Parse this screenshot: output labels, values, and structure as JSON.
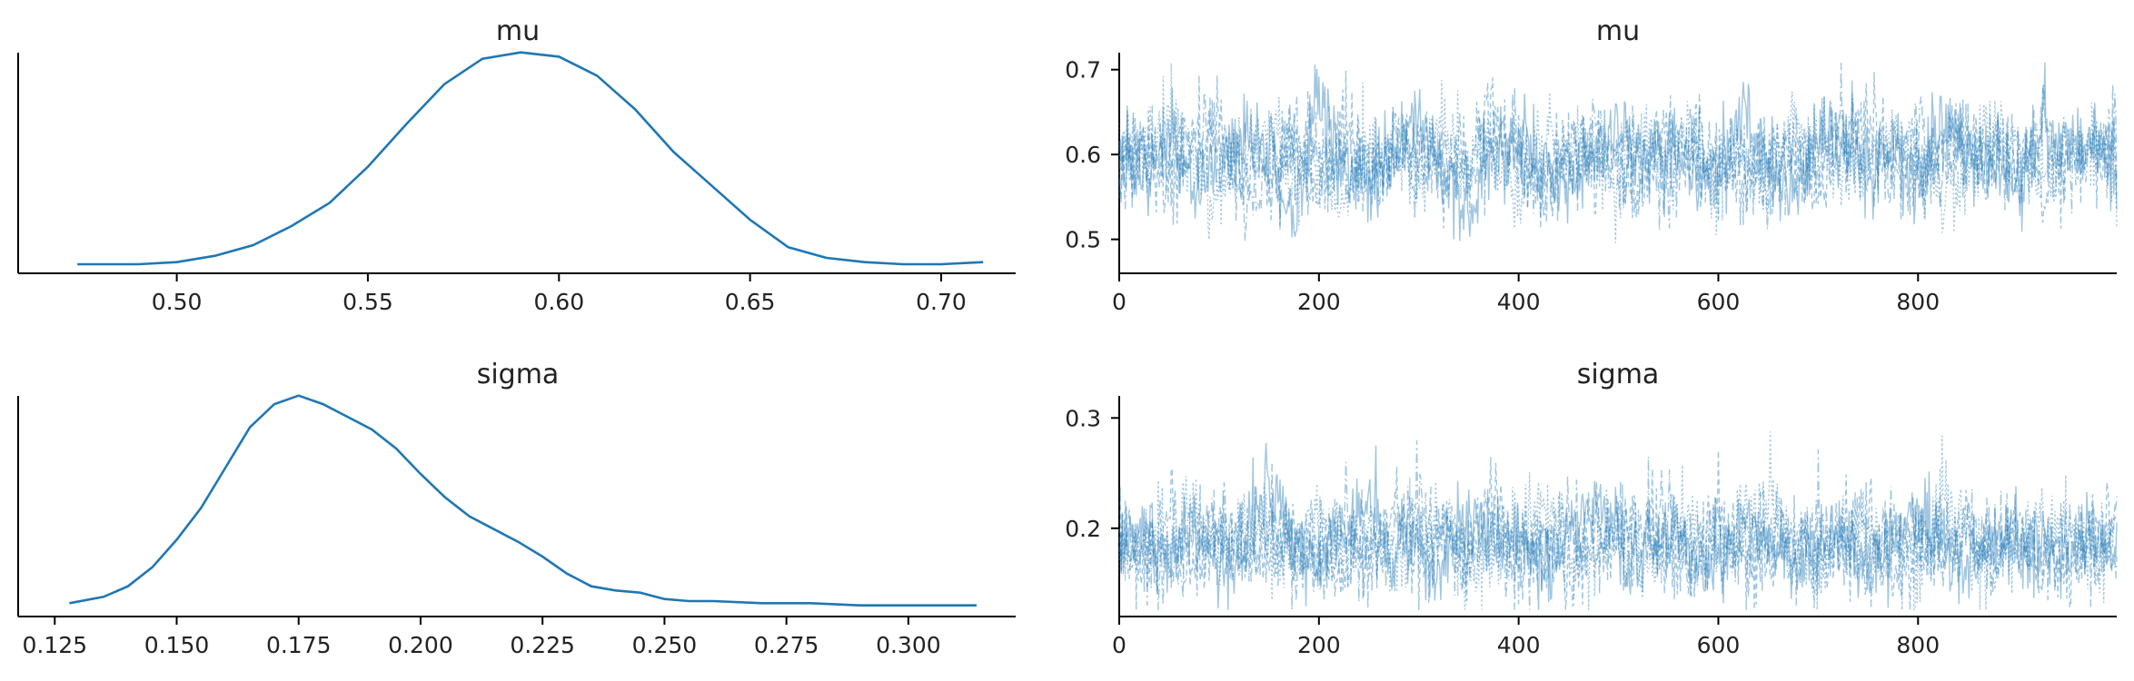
{
  "figure": {
    "colors": {
      "series": "#1f77b4",
      "axis": "#000000",
      "background": "#ffffff"
    }
  },
  "chart_data": [
    {
      "type": "line",
      "kind": "kde",
      "title": "mu",
      "xlabel": "",
      "ylabel": "",
      "xlim": [
        0.4585,
        0.7195
      ],
      "ylim": [
        0,
        1
      ],
      "xticks": [
        0.5,
        0.55,
        0.6,
        0.65,
        0.7
      ],
      "xtick_labels": [
        "0.50",
        "0.55",
        "0.60",
        "0.65",
        "0.70"
      ],
      "yticks_visible": false,
      "series": [
        {
          "x": [
            0.474,
            0.49,
            0.5,
            0.51,
            0.52,
            0.53,
            0.54,
            0.55,
            0.56,
            0.57,
            0.58,
            0.59,
            0.6,
            0.61,
            0.62,
            0.63,
            0.64,
            0.65,
            0.66,
            0.67,
            0.68,
            0.69,
            0.7,
            0.711
          ],
          "y": [
            0.0,
            0.0,
            0.01,
            0.04,
            0.09,
            0.18,
            0.29,
            0.46,
            0.66,
            0.85,
            0.97,
            1.0,
            0.98,
            0.89,
            0.73,
            0.53,
            0.37,
            0.21,
            0.08,
            0.03,
            0.01,
            0.0,
            0.0,
            0.01
          ]
        }
      ]
    },
    {
      "type": "line",
      "kind": "trace",
      "title": "mu",
      "xlabel": "",
      "ylabel": "",
      "xlim": [
        0,
        999
      ],
      "ylim": [
        0.46,
        0.72
      ],
      "xticks": [
        0,
        200,
        400,
        600,
        800
      ],
      "xtick_labels": [
        "0",
        "200",
        "400",
        "600",
        "800"
      ],
      "yticks": [
        0.5,
        0.6,
        0.7
      ],
      "ytick_labels": [
        "0.5",
        "0.6",
        "0.7"
      ],
      "n_draws": 1000,
      "n_chains": 4,
      "series": [
        {
          "name": "",
          "values": [
            0.6,
            0.57,
            0.62,
            0.55,
            0.58,
            0.63,
            0.6,
            0.52,
            0.66,
            0.59,
            0.57,
            0.61,
            0.64,
            0.58,
            0.54,
            0.6,
            0.62,
            0.59,
            0.56,
            0.6,
            0.63,
            0.58,
            0.61,
            0.57,
            0.6,
            0.65,
            0.59,
            0.55,
            0.62,
            0.6,
            0.58,
            0.61,
            0.57,
            0.63,
            0.6,
            0.59,
            0.55,
            0.62,
            0.6,
            0.61,
            0.58
          ]
        },
        {
          "name": "",
          "values": [
            0.58,
            0.62,
            0.56,
            0.6,
            0.64,
            0.57,
            0.59,
            0.61,
            0.55,
            0.63,
            0.6,
            0.58,
            0.62,
            0.57,
            0.6,
            0.66,
            0.59,
            0.56,
            0.61,
            0.58,
            0.6,
            0.55,
            0.63,
            0.6,
            0.58,
            0.57,
            0.62,
            0.6,
            0.56,
            0.61,
            0.64,
            0.59,
            0.57,
            0.6,
            0.62,
            0.58,
            0.61,
            0.56,
            0.6,
            0.59,
            0.62
          ]
        },
        {
          "name": "",
          "values": [
            0.61,
            0.59,
            0.65,
            0.58,
            0.56,
            0.6,
            0.62,
            0.57,
            0.59,
            0.54,
            0.62,
            0.6,
            0.57,
            0.63,
            0.59,
            0.61,
            0.55,
            0.62,
            0.6,
            0.58,
            0.57,
            0.64,
            0.59,
            0.61,
            0.56,
            0.6,
            0.58,
            0.63,
            0.61,
            0.57,
            0.59,
            0.62,
            0.6,
            0.55,
            0.58,
            0.63,
            0.6,
            0.57,
            0.61,
            0.6,
            0.58
          ]
        },
        {
          "name": "",
          "values": [
            0.57,
            0.6,
            0.59,
            0.63,
            0.61,
            0.55,
            0.57,
            0.62,
            0.6,
            0.58,
            0.56,
            0.63,
            0.59,
            0.61,
            0.57,
            0.6,
            0.62,
            0.55,
            0.59,
            0.63,
            0.58,
            0.6,
            0.57,
            0.62,
            0.59,
            0.61,
            0.56,
            0.59,
            0.6,
            0.64,
            0.57,
            0.6,
            0.62,
            0.58,
            0.6,
            0.61,
            0.57,
            0.63,
            0.58,
            0.61,
            0.6
          ]
        }
      ]
    },
    {
      "type": "line",
      "kind": "kde",
      "title": "sigma",
      "xlabel": "",
      "ylabel": "",
      "xlim": [
        0.1175,
        0.322
      ],
      "ylim": [
        0,
        1
      ],
      "xticks": [
        0.125,
        0.15,
        0.175,
        0.2,
        0.225,
        0.25,
        0.275,
        0.3
      ],
      "xtick_labels": [
        "0.125",
        "0.150",
        "0.175",
        "0.200",
        "0.225",
        "0.250",
        "0.275",
        "0.300"
      ],
      "yticks_visible": false,
      "series": [
        {
          "x": [
            0.128,
            0.135,
            0.14,
            0.145,
            0.15,
            0.155,
            0.16,
            0.165,
            0.17,
            0.175,
            0.18,
            0.185,
            0.19,
            0.195,
            0.2,
            0.205,
            0.21,
            0.215,
            0.22,
            0.225,
            0.23,
            0.235,
            0.24,
            0.245,
            0.25,
            0.255,
            0.26,
            0.27,
            0.28,
            0.29,
            0.3,
            0.314
          ],
          "y": [
            0.02,
            0.05,
            0.1,
            0.19,
            0.32,
            0.47,
            0.66,
            0.85,
            0.96,
            1.0,
            0.96,
            0.9,
            0.84,
            0.75,
            0.63,
            0.52,
            0.43,
            0.37,
            0.31,
            0.24,
            0.16,
            0.1,
            0.08,
            0.07,
            0.04,
            0.03,
            0.03,
            0.02,
            0.02,
            0.01,
            0.01,
            0.01
          ]
        }
      ]
    },
    {
      "type": "line",
      "kind": "trace",
      "title": "sigma",
      "xlabel": "",
      "ylabel": "",
      "xlim": [
        0,
        999
      ],
      "ylim": [
        0.12,
        0.32
      ],
      "xticks": [
        0,
        200,
        400,
        600,
        800
      ],
      "xtick_labels": [
        "0",
        "200",
        "400",
        "600",
        "800"
      ],
      "yticks": [
        0.2,
        0.3
      ],
      "ytick_labels": [
        "0.2",
        "0.3"
      ],
      "n_draws": 1000,
      "n_chains": 4,
      "series": [
        {
          "name": "",
          "values": [
            0.18,
            0.21,
            0.17,
            0.2,
            0.16,
            0.19,
            0.24,
            0.18,
            0.17,
            0.2,
            0.22,
            0.17,
            0.19,
            0.16,
            0.21,
            0.18,
            0.2,
            0.17,
            0.19,
            0.23,
            0.18,
            0.16,
            0.2,
            0.18,
            0.17,
            0.21,
            0.19,
            0.16,
            0.18,
            0.2,
            0.17,
            0.19,
            0.22,
            0.18,
            0.16,
            0.2,
            0.18,
            0.19,
            0.17,
            0.2,
            0.18
          ]
        },
        {
          "name": "",
          "values": [
            0.19,
            0.17,
            0.22,
            0.16,
            0.2,
            0.18,
            0.17,
            0.21,
            0.19,
            0.16,
            0.18,
            0.22,
            0.17,
            0.2,
            0.18,
            0.24,
            0.17,
            0.19,
            0.16,
            0.2,
            0.18,
            0.21,
            0.17,
            0.19,
            0.22,
            0.16,
            0.18,
            0.2,
            0.17,
            0.19,
            0.21,
            0.16,
            0.18,
            0.19,
            0.2,
            0.17,
            0.21,
            0.18,
            0.16,
            0.19,
            0.2
          ]
        },
        {
          "name": "",
          "values": [
            0.17,
            0.2,
            0.18,
            0.23,
            0.17,
            0.2,
            0.19,
            0.16,
            0.22,
            0.18,
            0.2,
            0.17,
            0.19,
            0.21,
            0.16,
            0.18,
            0.2,
            0.22,
            0.17,
            0.18,
            0.2,
            0.16,
            0.19,
            0.21,
            0.17,
            0.2,
            0.23,
            0.18,
            0.16,
            0.19,
            0.2,
            0.18,
            0.17,
            0.22,
            0.19,
            0.16,
            0.18,
            0.2,
            0.21,
            0.17,
            0.19
          ]
        },
        {
          "name": "",
          "values": [
            0.2,
            0.18,
            0.16,
            0.19,
            0.21,
            0.17,
            0.2,
            0.18,
            0.16,
            0.21,
            0.17,
            0.19,
            0.23,
            0.18,
            0.17,
            0.2,
            0.16,
            0.19,
            0.21,
            0.17,
            0.2,
            0.18,
            0.22,
            0.16,
            0.19,
            0.18,
            0.2,
            0.17,
            0.21,
            0.18,
            0.16,
            0.2,
            0.19,
            0.17,
            0.21,
            0.18,
            0.2,
            0.16,
            0.19,
            0.18,
            0.17
          ]
        }
      ]
    }
  ]
}
